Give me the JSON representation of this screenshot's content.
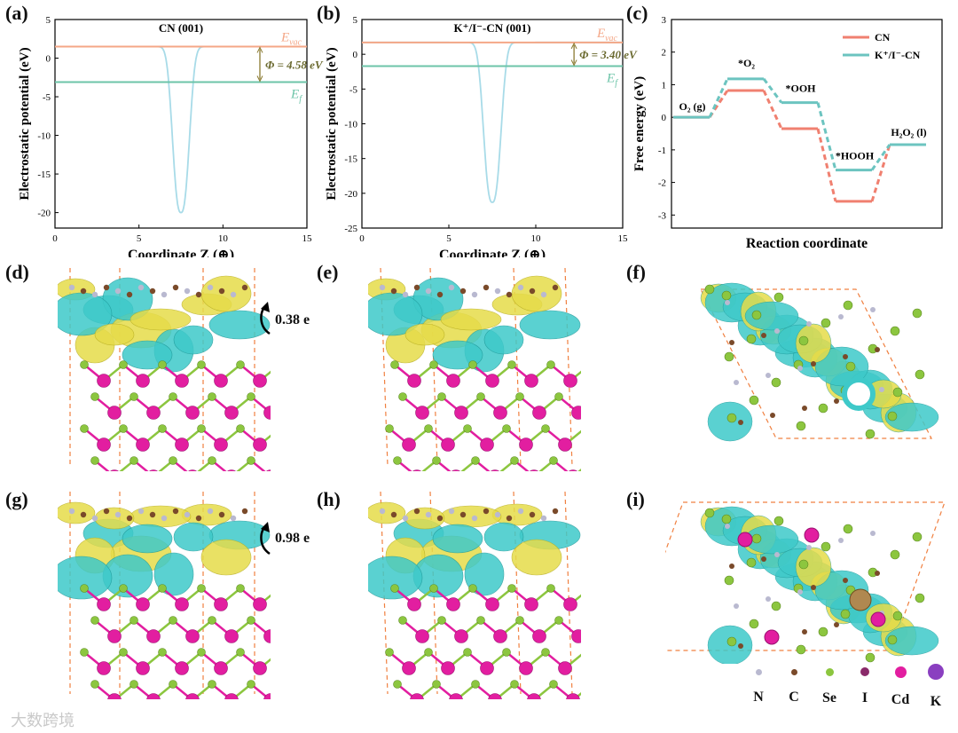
{
  "panels": {
    "a": "(a)",
    "b": "(b)",
    "c": "(c)",
    "d": "(d)",
    "e": "(e)",
    "f": "(f)",
    "g": "(g)",
    "h": "(h)",
    "i": "(i)"
  },
  "charge_transfer": {
    "d": "0.38 e",
    "g": "0.98 e"
  },
  "atom_legend": [
    {
      "label": "N",
      "color": "#b9b9d0",
      "size": 7
    },
    {
      "label": "C",
      "color": "#7a4a2a",
      "size": 7
    },
    {
      "label": "Se",
      "color": "#8cc63f",
      "size": 9
    },
    {
      "label": "I",
      "color": "#8a2a6a",
      "size": 10
    },
    {
      "label": "Cd",
      "color": "#e21ea0",
      "size": 13
    },
    {
      "label": "K",
      "color": "#8a3fc0",
      "size": 18
    }
  ],
  "watermark": "大数跨境",
  "chart_data": [
    {
      "type": "line",
      "title": "CN (001)",
      "xlabel": "Coordinate Z (⊕)",
      "ylabel": "Electrostatic potential (eV)",
      "xlim": [
        0,
        15
      ],
      "ylim": [
        -22,
        5
      ],
      "xticks": [
        "0",
        "5",
        "10",
        "15"
      ],
      "yticks": [
        "5",
        "0",
        "-5",
        "-10",
        "-15",
        "-20"
      ],
      "e_vac": 1.5,
      "e_f": -3.1,
      "e_vac_label": "E_vac",
      "e_f_label": "E_f",
      "work_function_label": "Φ = 4.58 eV",
      "well_center": 7.5,
      "well_min": -20.0
    },
    {
      "type": "line",
      "title": "K⁺/I⁻-CN (001)",
      "xlabel": "Coordinate Z (⊕)",
      "ylabel": "Electrostatic potential (eV)",
      "xlim": [
        0,
        15
      ],
      "ylim": [
        -25,
        5
      ],
      "xticks": [
        "0",
        "5",
        "10",
        "15"
      ],
      "yticks": [
        "5",
        "0",
        "-5",
        "-10",
        "-15",
        "-20",
        "-25"
      ],
      "e_vac": 1.7,
      "e_f": -1.7,
      "e_vac_label": "E_vac",
      "e_f_label": "E_f",
      "work_function_label": "Φ = 3.40 eV",
      "well_center": 7.5,
      "well_min": -21.3
    },
    {
      "type": "line",
      "xlabel": "Reaction coordinate",
      "ylabel": "Free energy (eV)",
      "ylim": [
        -3.4,
        3.0
      ],
      "yticks": [
        "3",
        "2",
        "1",
        "0",
        "-1",
        "-2",
        "-3"
      ],
      "states": [
        "O₂ (g)",
        "*O₂",
        "*OOH",
        "*HOOH",
        "H₂O₂ (l)"
      ],
      "series": [
        {
          "name": "CN",
          "color": "#f08070",
          "values": [
            0,
            0.82,
            -0.35,
            -2.58,
            -0.84
          ]
        },
        {
          "name": "K⁺/I⁻-CN",
          "color": "#6cc4c0",
          "values": [
            0,
            1.18,
            0.45,
            -1.62,
            -0.84
          ]
        }
      ]
    }
  ]
}
